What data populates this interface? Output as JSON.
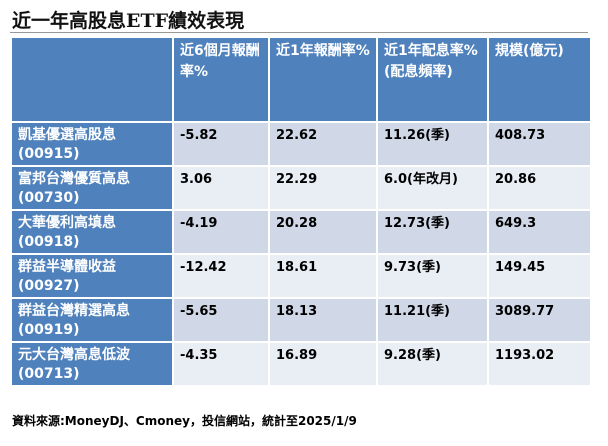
{
  "title": "近一年高股息ETF績效表現",
  "table": {
    "headers": [
      "",
      "近6個月報酬率%",
      "近1年報酬率%",
      "近1年配息率%\n(配息頻率)",
      "規模(億元)"
    ],
    "rows": [
      {
        "name": "凱基優選高股息(00915)",
        "return_6m": "-5.82",
        "return_1y": "22.62",
        "yield_1y": "11.26(季)",
        "size": "408.73"
      },
      {
        "name": "富邦台灣優質高息(00730)",
        "return_6m": "3.06",
        "return_1y": "22.29",
        "yield_1y": "6.0(年改月)",
        "size": "20.86"
      },
      {
        "name": "大華優利高填息(00918)",
        "return_6m": "-4.19",
        "return_1y": "20.28",
        "yield_1y": "12.73(季)",
        "size": "649.3"
      },
      {
        "name": "群益半導體收益(00927)",
        "return_6m": "-12.42",
        "return_1y": "18.61",
        "yield_1y": "9.73(季)",
        "size": "149.45"
      },
      {
        "name": "群益台灣精選高息(00919)",
        "return_6m": "-5.65",
        "return_1y": "18.13",
        "yield_1y": "11.21(季)",
        "size": "3089.77"
      },
      {
        "name": "元大台灣高息低波(00713)",
        "return_6m": "-4.35",
        "return_1y": "16.89",
        "yield_1y": "9.28(季)",
        "size": "1193.02"
      }
    ]
  },
  "source": "資料來源:MoneyDJ、Cmoney，投信網站，統計至2025/1/9",
  "colors": {
    "header_bg": "#4f81bd",
    "row_odd": "#d0d8e8",
    "row_even": "#e9edf4"
  }
}
